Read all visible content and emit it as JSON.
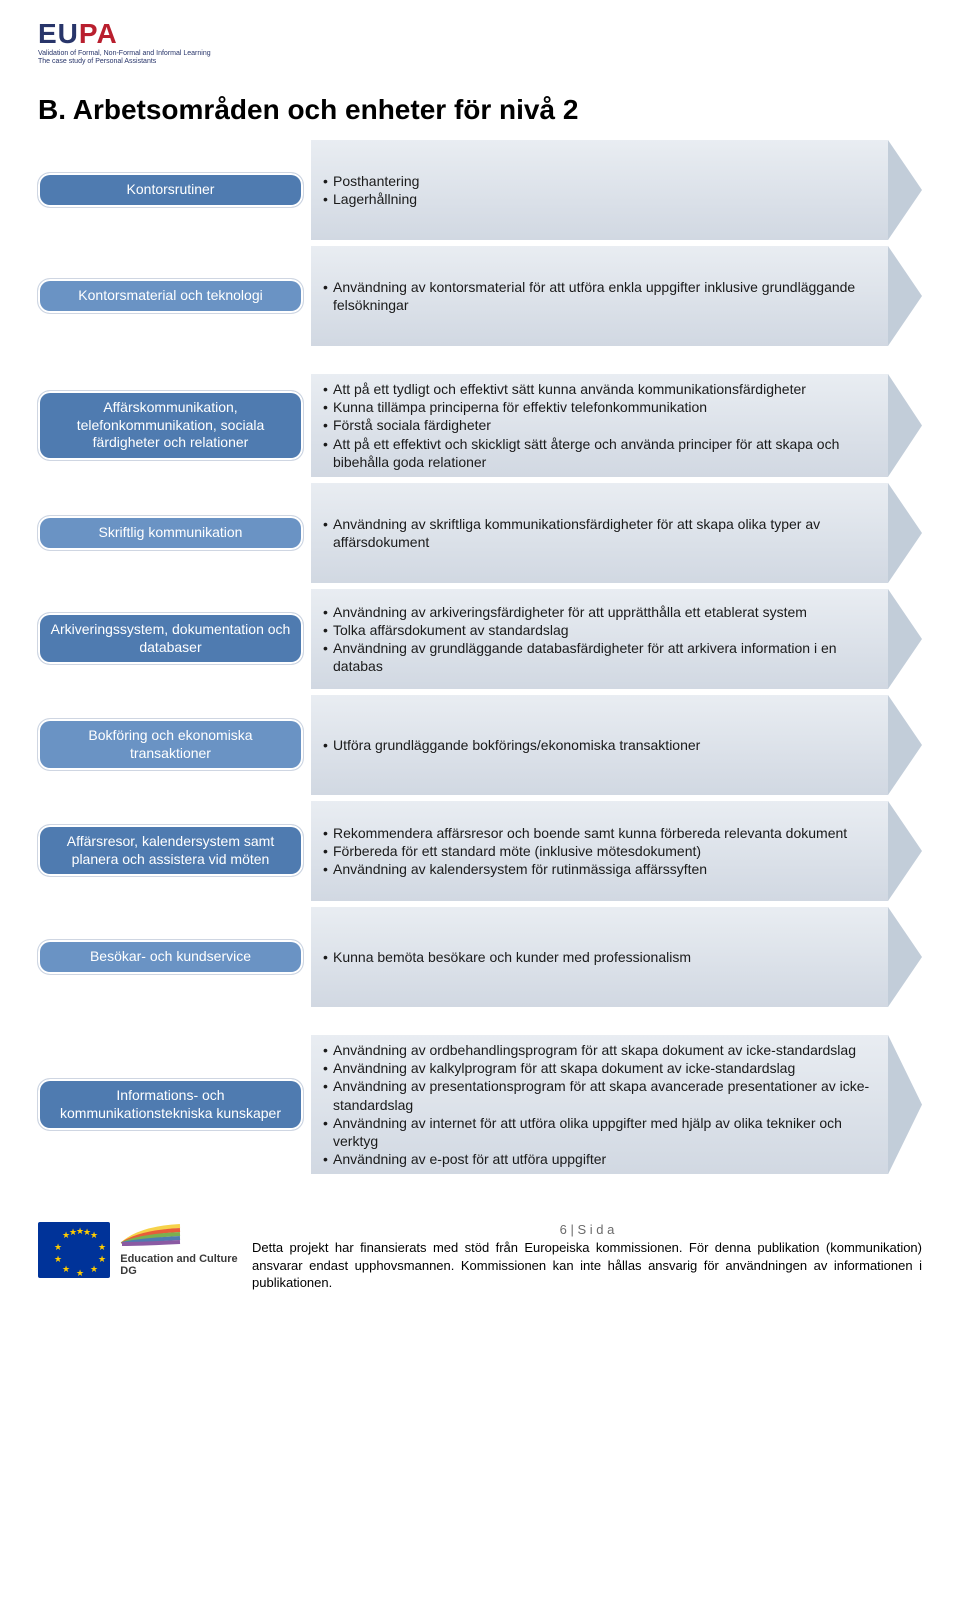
{
  "logo": {
    "eu": "EU",
    "pa": "PA",
    "sub1": "Validation of Formal, Non-Formal and Informal Learning",
    "sub2": "The case study of Personal Assistants"
  },
  "title": "B. Arbetsområden och enheter för nivå 2",
  "colors": {
    "pill_dark": "#4f7bb0",
    "pill_light": "#6a93c4",
    "arrow_bg_grad_top": "#e9edf2",
    "arrow_bg_grad_bot": "#d1d8e2",
    "arrow_head": "#c2cdd9",
    "text": "#1a1a1a"
  },
  "groups": [
    {
      "rows": [
        {
          "label": "Kontorsrutiner",
          "points": [
            "Posthantering",
            "Lagerhållning"
          ]
        },
        {
          "label": "Kontorsmaterial och teknologi",
          "points": [
            "Användning av kontorsmaterial för att utföra enkla uppgifter inklusive grundläggande felsökningar"
          ]
        }
      ]
    },
    {
      "rows": [
        {
          "label": "Affärskommunikation, telefonkommunikation, sociala färdigheter och relationer",
          "points": [
            "Att på ett tydligt och effektivt sätt kunna använda kommunikationsfärdigheter",
            "Kunna tillämpa principerna för effektiv telefonkommunikation",
            "Förstå sociala färdigheter",
            "Att på ett effektivt och skickligt sätt återge och använda principer för att skapa och bibehålla goda relationer"
          ]
        },
        {
          "label": "Skriftlig kommunikation",
          "points": [
            "Användning av skriftliga kommunikationsfärdigheter för att skapa olika typer av affärsdokument"
          ]
        },
        {
          "label": "Arkiveringssystem, dokumentation och databaser",
          "points": [
            "Användning av arkiveringsfärdigheter för att upprätthålla ett etablerat system",
            "Tolka affärsdokument av standardslag",
            "Användning av grundläggande databasfärdigheter för att arkivera information i en databas"
          ]
        },
        {
          "label": "Bokföring och ekonomiska transaktioner",
          "points": [
            "Utföra grundläggande bokförings/ekonomiska transaktioner"
          ]
        },
        {
          "label": "Affärsresor, kalendersystem samt planera och assistera vid möten",
          "points": [
            "Rekommendera affärsresor och boende samt kunna förbereda relevanta dokument",
            "Förbereda för ett standard möte (inklusive mötesdokument)",
            "Användning av kalendersystem för rutinmässiga affärssyften"
          ]
        },
        {
          "label": "Besökar- och kundservice",
          "points": [
            "Kunna bemöta besökare och kunder med professionalism"
          ]
        }
      ]
    },
    {
      "rows": [
        {
          "label": "Informations- och kommunikationstekniska kunskaper",
          "points": [
            "Användning av ordbehandlingsprogram för att skapa dokument av icke-standardslag",
            "Användning av kalkylprogram för att skapa dokument av icke-standardslag",
            "Användning av presentationsprogram för att skapa avancerade presentationer av icke-standardslag",
            "Användning av internet för att utföra olika uppgifter med hjälp av olika tekniker och verktyg",
            "Användning av e-post för att utföra uppgifter"
          ]
        }
      ]
    }
  ],
  "footer": {
    "page": "6 | S i d a",
    "edu_label": "Education and Culture DG",
    "text": "Detta projekt har finansierats med stöd från Europeiska kommissionen. För denna publikation (kommunikation) ansvarar endast upphovsmannen. Kommissionen kan inte hållas ansvarig för användningen av informationen i publikationen."
  }
}
